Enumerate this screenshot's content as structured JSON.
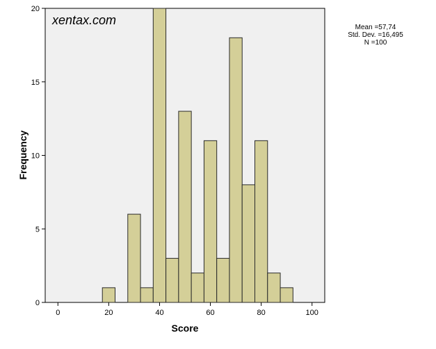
{
  "chart_data": {
    "type": "bar",
    "subtype": "histogram",
    "watermark": "xentax.com",
    "xlabel": "Score",
    "ylabel": "Frequency",
    "xlim": [
      -5,
      105
    ],
    "ylim": [
      0,
      20
    ],
    "xticks": [
      0,
      20,
      40,
      60,
      80,
      100
    ],
    "yticks": [
      0,
      5,
      10,
      15,
      20
    ],
    "grid": false,
    "bin_width": 5,
    "bins": [
      {
        "start": 17.5,
        "end": 22.5,
        "count": 1
      },
      {
        "start": 27.5,
        "end": 32.5,
        "count": 6
      },
      {
        "start": 32.5,
        "end": 37.5,
        "count": 1
      },
      {
        "start": 37.5,
        "end": 42.5,
        "count": 20
      },
      {
        "start": 42.5,
        "end": 47.5,
        "count": 3
      },
      {
        "start": 47.5,
        "end": 52.5,
        "count": 13
      },
      {
        "start": 52.5,
        "end": 57.5,
        "count": 2
      },
      {
        "start": 57.5,
        "end": 62.5,
        "count": 11
      },
      {
        "start": 62.5,
        "end": 67.5,
        "count": 3
      },
      {
        "start": 67.5,
        "end": 72.5,
        "count": 18
      },
      {
        "start": 72.5,
        "end": 77.5,
        "count": 8
      },
      {
        "start": 77.5,
        "end": 82.5,
        "count": 11
      },
      {
        "start": 82.5,
        "end": 87.5,
        "count": 2
      },
      {
        "start": 87.5,
        "end": 92.5,
        "count": 1
      }
    ],
    "stats": {
      "mean": "Mean =57,74",
      "std_dev": "Std. Dev. =16,495",
      "n": "N =100"
    },
    "colors": {
      "bar_fill": "#d4cf98",
      "bar_stroke": "#2a2a2a",
      "plot_background": "#f0f0f0",
      "page_background": "#ffffff"
    }
  }
}
